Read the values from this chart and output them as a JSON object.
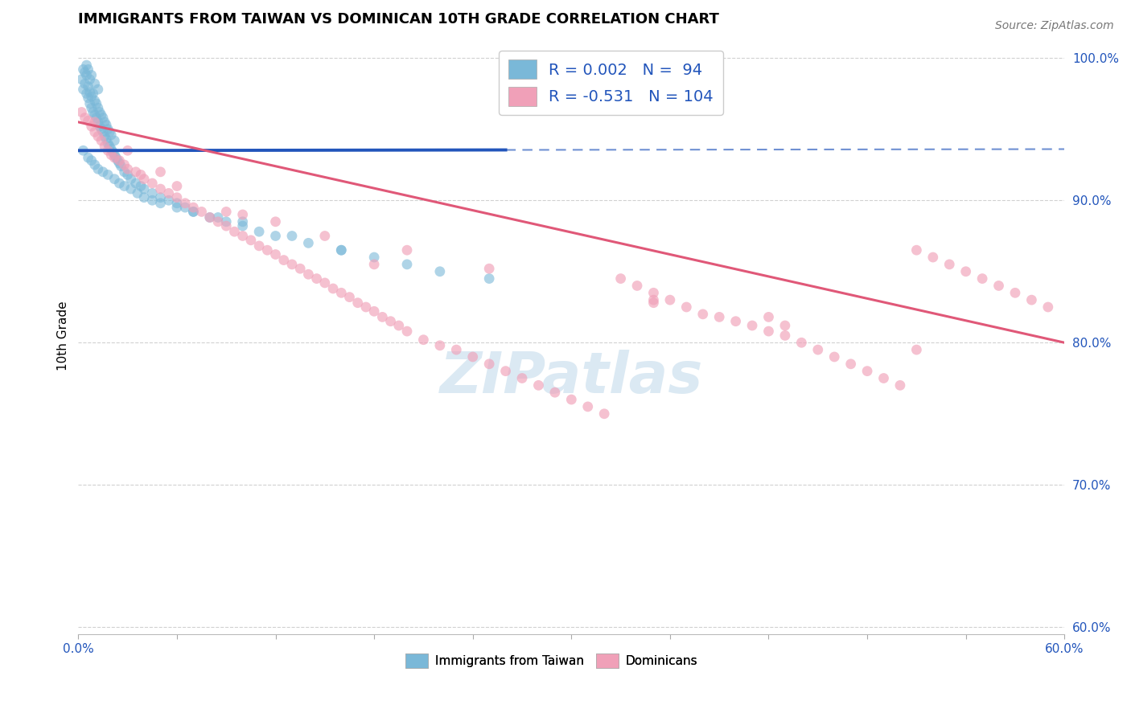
{
  "title": "IMMIGRANTS FROM TAIWAN VS DOMINICAN 10TH GRADE CORRELATION CHART",
  "source_text": "Source: ZipAtlas.com",
  "ylabel": "10th Grade",
  "xlim": [
    0.0,
    0.6
  ],
  "ylim": [
    0.595,
    1.015
  ],
  "xtick_positions": [
    0.0,
    0.06,
    0.12,
    0.18,
    0.24,
    0.3,
    0.36,
    0.42,
    0.48,
    0.54,
    0.6
  ],
  "ytick_positions": [
    0.6,
    0.7,
    0.8,
    0.9,
    1.0
  ],
  "ytick_labels": [
    "60.0%",
    "70.0%",
    "80.0%",
    "90.0%",
    "100.0%"
  ],
  "taiwan_R": 0.002,
  "taiwan_N": 94,
  "dominican_R": -0.531,
  "dominican_N": 104,
  "taiwan_color": "#7ab8d8",
  "dominican_color": "#f0a0b8",
  "taiwan_line_color": "#2255bb",
  "dominican_line_color": "#e05878",
  "taiwan_scatter_x": [
    0.002,
    0.003,
    0.003,
    0.004,
    0.004,
    0.005,
    0.005,
    0.005,
    0.006,
    0.006,
    0.006,
    0.007,
    0.007,
    0.007,
    0.008,
    0.008,
    0.008,
    0.009,
    0.009,
    0.01,
    0.01,
    0.01,
    0.011,
    0.011,
    0.012,
    0.012,
    0.012,
    0.013,
    0.013,
    0.014,
    0.014,
    0.015,
    0.015,
    0.016,
    0.016,
    0.017,
    0.017,
    0.018,
    0.018,
    0.019,
    0.019,
    0.02,
    0.02,
    0.021,
    0.022,
    0.022,
    0.023,
    0.024,
    0.025,
    0.026,
    0.028,
    0.03,
    0.032,
    0.035,
    0.038,
    0.04,
    0.045,
    0.05,
    0.055,
    0.06,
    0.065,
    0.07,
    0.08,
    0.09,
    0.1,
    0.11,
    0.12,
    0.14,
    0.16,
    0.18,
    0.2,
    0.22,
    0.003,
    0.006,
    0.008,
    0.01,
    0.012,
    0.015,
    0.018,
    0.022,
    0.025,
    0.028,
    0.032,
    0.036,
    0.04,
    0.045,
    0.05,
    0.06,
    0.07,
    0.085,
    0.1,
    0.13,
    0.16,
    0.25
  ],
  "taiwan_scatter_y": [
    0.985,
    0.978,
    0.992,
    0.982,
    0.99,
    0.975,
    0.988,
    0.995,
    0.972,
    0.98,
    0.992,
    0.968,
    0.976,
    0.985,
    0.965,
    0.973,
    0.988,
    0.962,
    0.975,
    0.96,
    0.97,
    0.982,
    0.958,
    0.968,
    0.955,
    0.965,
    0.978,
    0.952,
    0.962,
    0.95,
    0.96,
    0.948,
    0.958,
    0.945,
    0.955,
    0.943,
    0.953,
    0.94,
    0.95,
    0.938,
    0.948,
    0.936,
    0.946,
    0.934,
    0.932,
    0.942,
    0.93,
    0.928,
    0.926,
    0.924,
    0.92,
    0.918,
    0.915,
    0.912,
    0.91,
    0.908,
    0.905,
    0.902,
    0.9,
    0.898,
    0.895,
    0.892,
    0.888,
    0.885,
    0.882,
    0.878,
    0.875,
    0.87,
    0.865,
    0.86,
    0.855,
    0.85,
    0.935,
    0.93,
    0.928,
    0.925,
    0.922,
    0.92,
    0.918,
    0.915,
    0.912,
    0.91,
    0.908,
    0.905,
    0.902,
    0.9,
    0.898,
    0.895,
    0.892,
    0.888,
    0.885,
    0.875,
    0.865,
    0.845
  ],
  "dominican_scatter_x": [
    0.002,
    0.004,
    0.006,
    0.008,
    0.01,
    0.012,
    0.014,
    0.016,
    0.018,
    0.02,
    0.022,
    0.025,
    0.028,
    0.03,
    0.035,
    0.038,
    0.04,
    0.045,
    0.05,
    0.055,
    0.06,
    0.065,
    0.07,
    0.075,
    0.08,
    0.085,
    0.09,
    0.095,
    0.1,
    0.105,
    0.11,
    0.115,
    0.12,
    0.125,
    0.13,
    0.135,
    0.14,
    0.145,
    0.15,
    0.155,
    0.16,
    0.165,
    0.17,
    0.175,
    0.18,
    0.185,
    0.19,
    0.195,
    0.2,
    0.21,
    0.22,
    0.23,
    0.24,
    0.25,
    0.26,
    0.27,
    0.28,
    0.29,
    0.3,
    0.31,
    0.32,
    0.33,
    0.34,
    0.35,
    0.36,
    0.37,
    0.38,
    0.39,
    0.4,
    0.41,
    0.42,
    0.43,
    0.44,
    0.45,
    0.46,
    0.47,
    0.48,
    0.49,
    0.5,
    0.51,
    0.52,
    0.53,
    0.54,
    0.55,
    0.56,
    0.57,
    0.58,
    0.59,
    0.01,
    0.03,
    0.06,
    0.09,
    0.12,
    0.15,
    0.2,
    0.25,
    0.35,
    0.42,
    0.05,
    0.1,
    0.18,
    0.35,
    0.43,
    0.51
  ],
  "dominican_scatter_y": [
    0.962,
    0.958,
    0.956,
    0.952,
    0.948,
    0.945,
    0.942,
    0.938,
    0.935,
    0.932,
    0.93,
    0.928,
    0.925,
    0.922,
    0.92,
    0.918,
    0.915,
    0.912,
    0.908,
    0.905,
    0.902,
    0.898,
    0.895,
    0.892,
    0.888,
    0.885,
    0.882,
    0.878,
    0.875,
    0.872,
    0.868,
    0.865,
    0.862,
    0.858,
    0.855,
    0.852,
    0.848,
    0.845,
    0.842,
    0.838,
    0.835,
    0.832,
    0.828,
    0.825,
    0.822,
    0.818,
    0.815,
    0.812,
    0.808,
    0.802,
    0.798,
    0.795,
    0.79,
    0.785,
    0.78,
    0.775,
    0.77,
    0.765,
    0.76,
    0.755,
    0.75,
    0.845,
    0.84,
    0.835,
    0.83,
    0.825,
    0.82,
    0.818,
    0.815,
    0.812,
    0.808,
    0.805,
    0.8,
    0.795,
    0.79,
    0.785,
    0.78,
    0.775,
    0.77,
    0.865,
    0.86,
    0.855,
    0.85,
    0.845,
    0.84,
    0.835,
    0.83,
    0.825,
    0.955,
    0.935,
    0.91,
    0.892,
    0.885,
    0.875,
    0.865,
    0.852,
    0.83,
    0.818,
    0.92,
    0.89,
    0.855,
    0.828,
    0.812,
    0.795
  ],
  "taiwan_trend_x0": 0.0,
  "taiwan_trend_x_solid_end": 0.26,
  "taiwan_trend_x1": 0.6,
  "taiwan_trend_y0": 0.935,
  "taiwan_trend_y1": 0.936,
  "dominican_trend_x0": 0.0,
  "dominican_trend_x1": 0.6,
  "dominican_trend_y0": 0.955,
  "dominican_trend_y1": 0.8,
  "grid_color": "#cccccc",
  "background_color": "#ffffff",
  "watermark_text": "ZIPatlas",
  "watermark_color": "#cce0ee",
  "legend_text_color": "#2255bb",
  "title_fontsize": 13,
  "ylabel_fontsize": 11,
  "tick_fontsize": 11,
  "source_fontsize": 10,
  "legend_fontsize": 14
}
